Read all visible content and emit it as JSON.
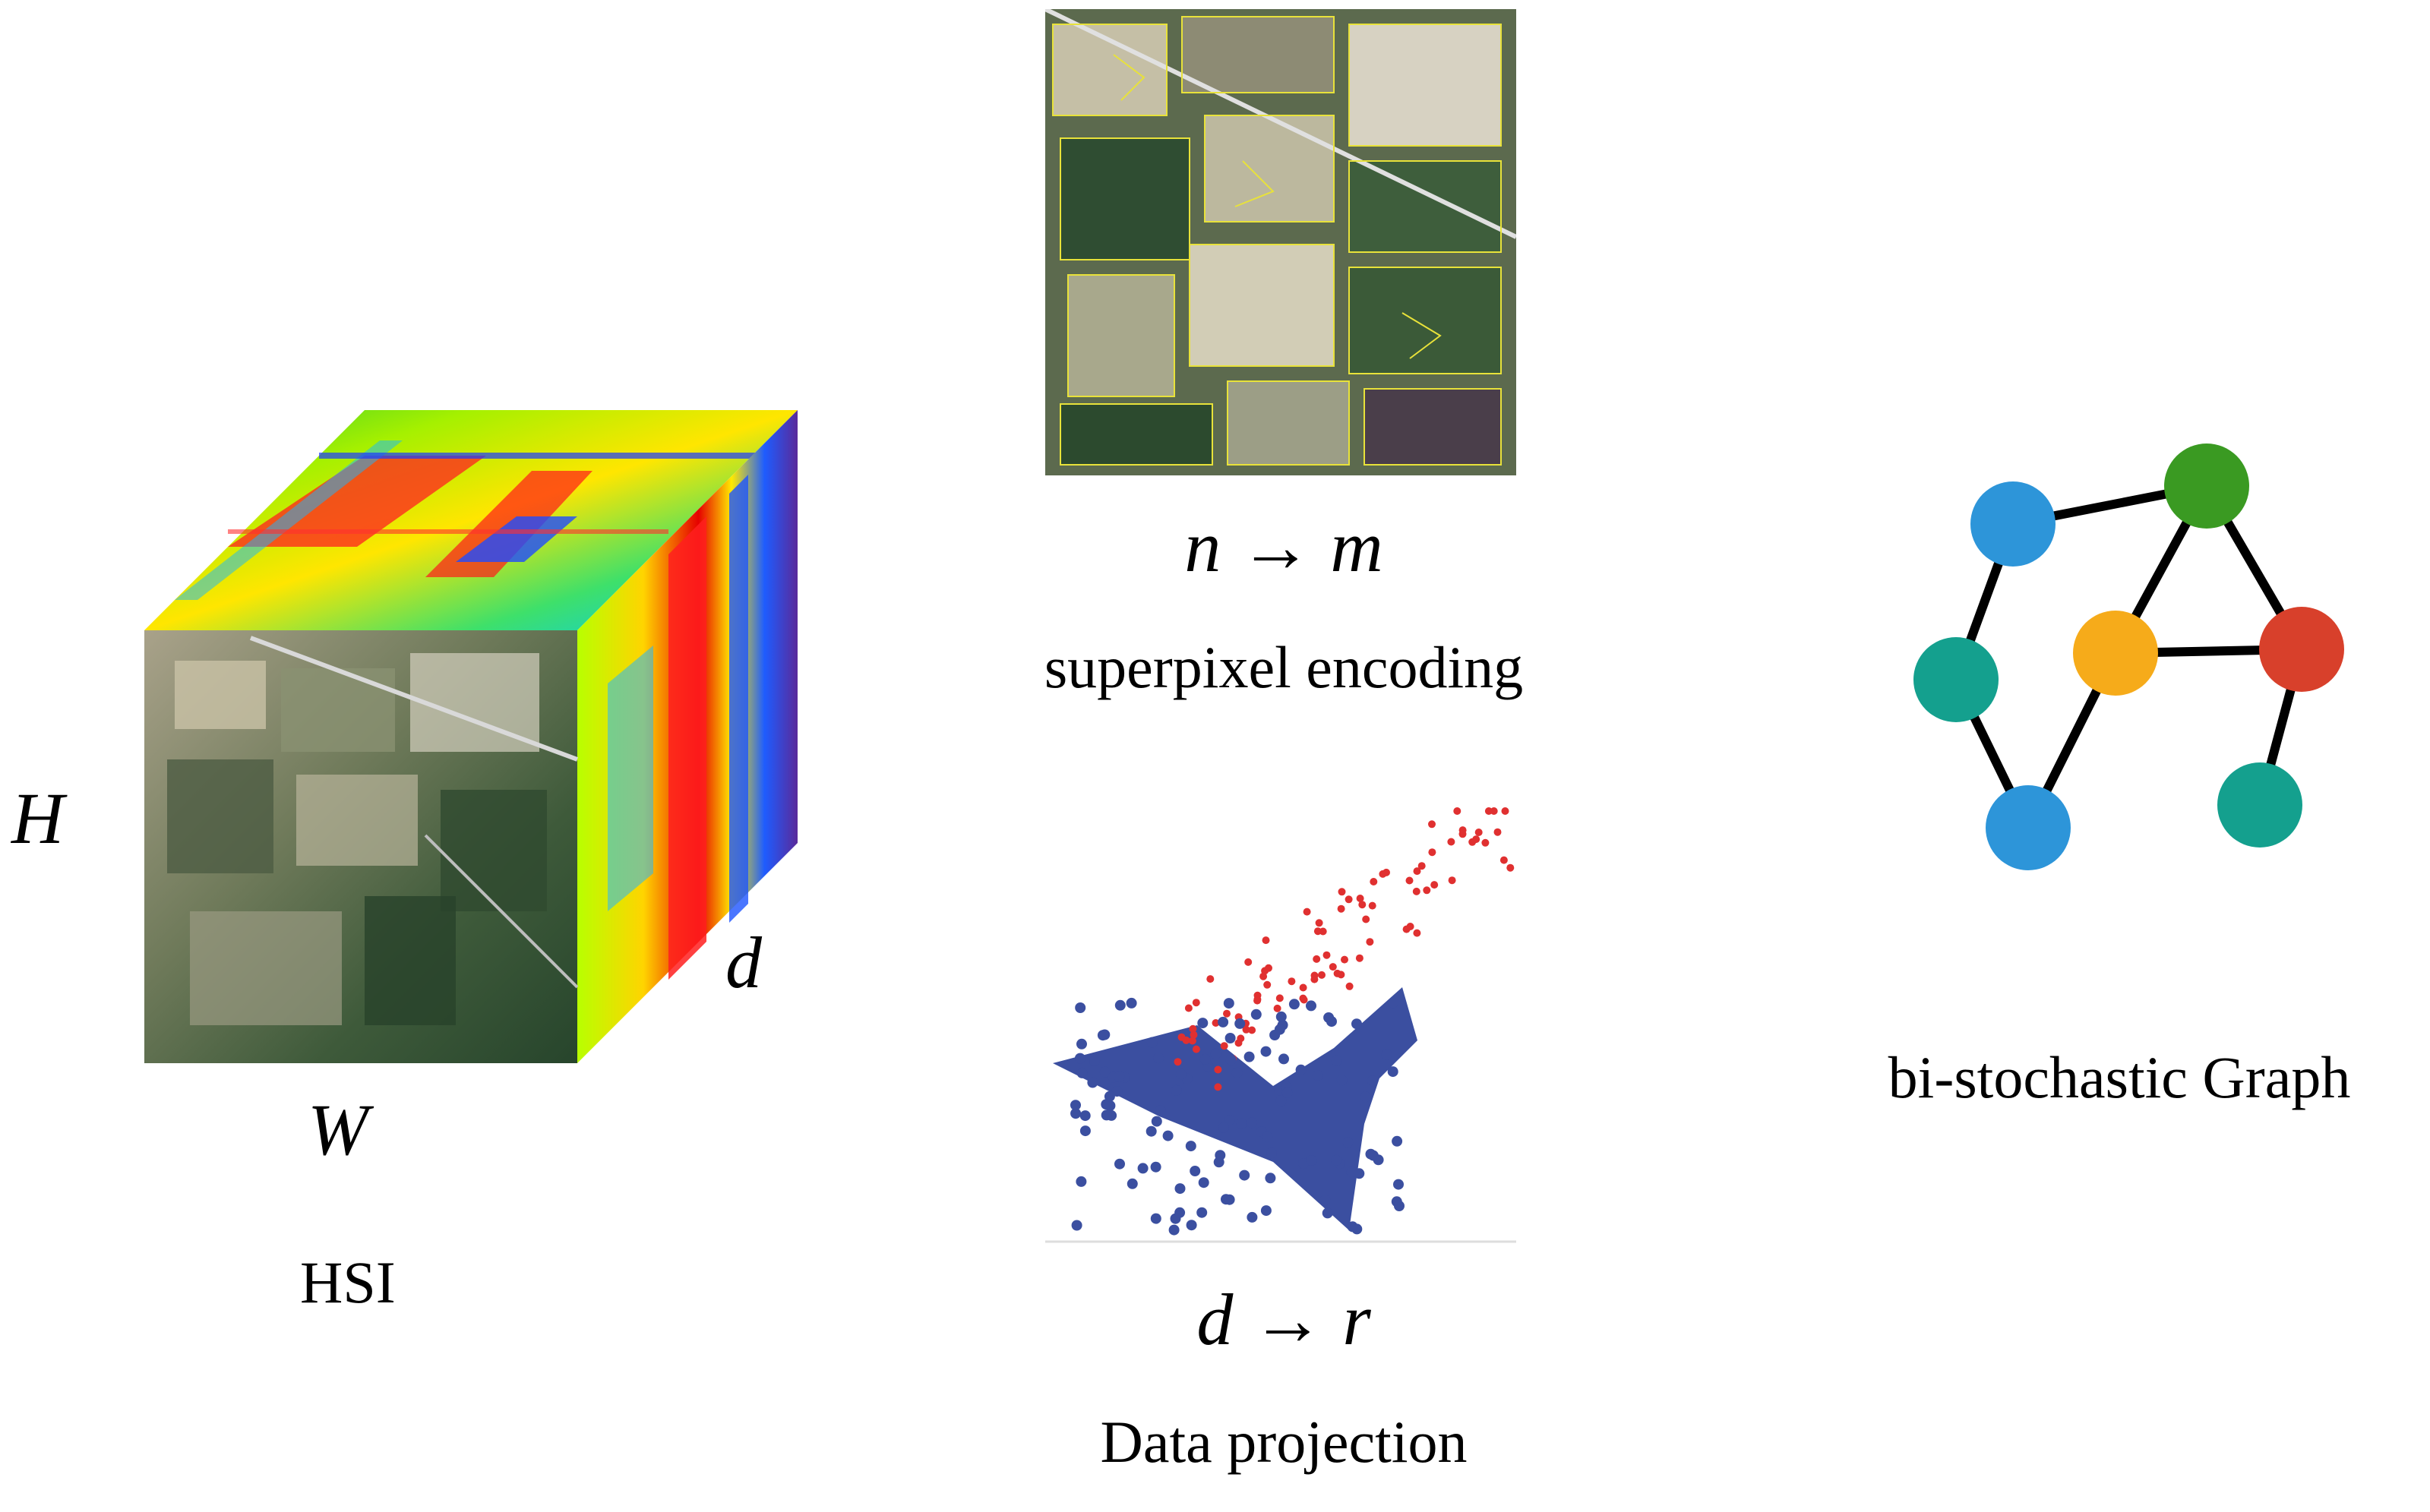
{
  "hsi": {
    "label": "HSI",
    "height_symbol": "H",
    "width_symbol": "W",
    "depth_symbol": "d"
  },
  "superpixel": {
    "formula": "n → m",
    "label": "superpixel encoding"
  },
  "projection": {
    "formula": "d → r",
    "label": "Data projection"
  },
  "graph": {
    "label": "bi-stochastic Graph",
    "node_colors": {
      "blue": "#2d95d9",
      "green": "#3a9a22",
      "teal": "#14a08e",
      "orange": "#f6ab1a",
      "red": "#d8402b"
    }
  }
}
